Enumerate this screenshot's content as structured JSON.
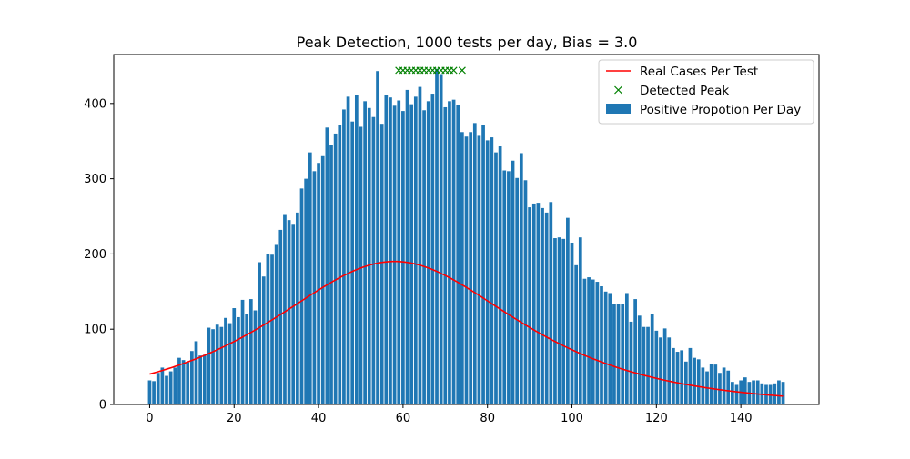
{
  "chart_data": {
    "type": "bar",
    "title": "Peak Detection, 1000 tests per day, Bias = 3.0",
    "xlabel": "",
    "ylabel": "",
    "xlim": [
      -8.5,
      158.5
    ],
    "ylim": [
      0,
      465
    ],
    "xticks": [
      0,
      20,
      40,
      60,
      80,
      100,
      120,
      140
    ],
    "yticks": [
      0,
      100,
      200,
      300,
      400
    ],
    "grid": false,
    "legend_position": "top-right",
    "colors": {
      "bars": "#1f77b4",
      "line": "#ff0000",
      "markers": "#008000"
    },
    "series": [
      {
        "name": "Positive Propotion Per Day",
        "type": "bar",
        "x_start": 0,
        "values": [
          32,
          31,
          42,
          49,
          38,
          44,
          49,
          62,
          59,
          56,
          71,
          84,
          65,
          66,
          102,
          100,
          106,
          103,
          115,
          108,
          128,
          116,
          139,
          120,
          140,
          125,
          189,
          170,
          200,
          199,
          212,
          232,
          253,
          245,
          240,
          255,
          287,
          300,
          335,
          310,
          321,
          330,
          368,
          345,
          360,
          372,
          392,
          409,
          376,
          411,
          369,
          403,
          394,
          382,
          443,
          373,
          411,
          408,
          397,
          404,
          390,
          418,
          399,
          409,
          422,
          391,
          403,
          413,
          446,
          439,
          395,
          403,
          405,
          398,
          362,
          356,
          362,
          374,
          357,
          372,
          351,
          355,
          335,
          343,
          311,
          310,
          324,
          301,
          334,
          298,
          262,
          267,
          268,
          261,
          255,
          269,
          221,
          222,
          220,
          248,
          215,
          185,
          222,
          167,
          169,
          166,
          163,
          157,
          150,
          148,
          134,
          134,
          133,
          148,
          110,
          140,
          118,
          103,
          103,
          120,
          98,
          89,
          101,
          89,
          75,
          70,
          72,
          57,
          75,
          62,
          60,
          49,
          44,
          54,
          53,
          42,
          49,
          45,
          30,
          26,
          32,
          36,
          30,
          32,
          32,
          28,
          26,
          26,
          28,
          32,
          30
        ]
      },
      {
        "name": "Real Cases Per Test",
        "type": "line",
        "model": {
          "amplitude": 190,
          "peak_x": 58,
          "width": 26,
          "x_from": 0,
          "x_to": 150
        }
      },
      {
        "name": "Detected Peak",
        "type": "scatter",
        "x": [
          59,
          60,
          61,
          62,
          63,
          64,
          65,
          66,
          67,
          68,
          69,
          70,
          71,
          72,
          74
        ],
        "y": [
          444,
          444,
          444,
          444,
          444,
          444,
          444,
          444,
          444,
          444,
          444,
          444,
          444,
          444,
          444
        ]
      }
    ]
  }
}
